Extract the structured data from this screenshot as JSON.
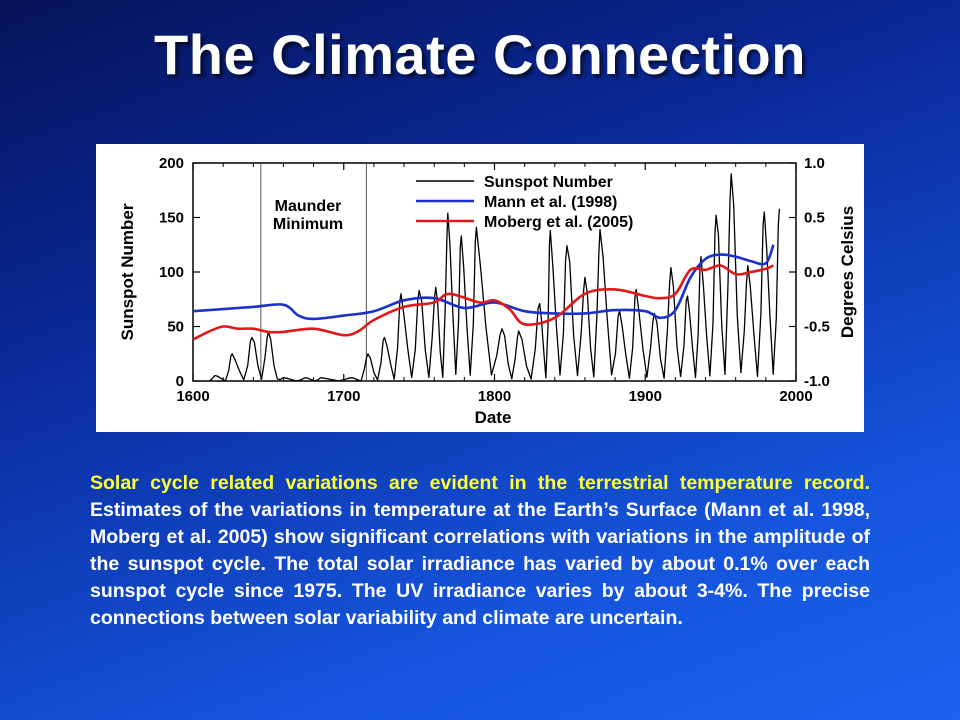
{
  "title": "The Climate Connection",
  "colors": {
    "highlight": "#ffff33",
    "text": "#ffffff",
    "sunspot": "#000000",
    "mann": "#1a2fd0",
    "moberg": "#e01818"
  },
  "body": {
    "highlight_text": "Solar cycle related variations are evident in the terrestrial temperature record.",
    "rest_text": " Estimates of the variations in temperature at the Earth’s Surface (Mann et al. 1998, Moberg et al. 2005) show significant correlations with variations in the amplitude of the sunspot cycle. The total solar irradiance has varied by about 0.1% over each sunspot cycle since 1975. The UV irradiance varies by about 3-4%. The precise connections between solar variability and climate are uncertain."
  },
  "chart_data": {
    "type": "line",
    "xlabel": "Date",
    "ylabel": "Sunspot Number",
    "y2label": "Degrees Celsius",
    "xlim": [
      1600,
      2000
    ],
    "ylim": [
      0,
      200
    ],
    "y2lim": [
      -1.0,
      1.0
    ],
    "x_ticks": [
      "1600",
      "1700",
      "1800",
      "1900",
      "2000"
    ],
    "y_ticks": [
      "0",
      "50",
      "100",
      "150",
      "200"
    ],
    "y2_ticks": [
      "-1.0",
      "-0.5",
      "0.0",
      "0.5",
      "1.0"
    ],
    "annotation": {
      "line1": "Maunder",
      "line2": "Minimum",
      "x_start": 1645,
      "x_end": 1715
    },
    "legend": [
      "Sunspot Number",
      "Mann et al. (1998)",
      "Moberg et al. (2005)"
    ],
    "legend_position": "top-right",
    "sunspot_peaks": [
      [
        1615,
        5
      ],
      [
        1626,
        25
      ],
      [
        1639,
        40
      ],
      [
        1650,
        45
      ],
      [
        1660,
        3
      ],
      [
        1675,
        3
      ],
      [
        1685,
        3
      ],
      [
        1705,
        3
      ],
      [
        1716,
        25
      ],
      [
        1727,
        40
      ],
      [
        1738,
        80
      ],
      [
        1750,
        83
      ],
      [
        1761,
        86
      ],
      [
        1769,
        154
      ],
      [
        1778,
        133
      ],
      [
        1788,
        141
      ],
      [
        1805,
        48
      ],
      [
        1816,
        46
      ],
      [
        1830,
        71
      ],
      [
        1837,
        138
      ],
      [
        1848,
        124
      ],
      [
        1860,
        95
      ],
      [
        1870,
        139
      ],
      [
        1883,
        64
      ],
      [
        1894,
        84
      ],
      [
        1906,
        62
      ],
      [
        1917,
        104
      ],
      [
        1928,
        78
      ],
      [
        1937,
        114
      ],
      [
        1947,
        152
      ],
      [
        1957,
        190
      ],
      [
        1968,
        106
      ],
      [
        1979,
        155
      ],
      [
        1989,
        158
      ]
    ],
    "series": [
      {
        "name": "Mann et al. (1998)",
        "unit": "Degrees Celsius",
        "x": [
          1600,
          1620,
          1640,
          1660,
          1670,
          1680,
          1700,
          1720,
          1740,
          1760,
          1780,
          1800,
          1820,
          1840,
          1860,
          1880,
          1900,
          1910,
          1920,
          1930,
          1940,
          1950,
          1960,
          1970,
          1980,
          1985
        ],
        "y": [
          -0.36,
          -0.34,
          -0.32,
          -0.3,
          -0.4,
          -0.43,
          -0.4,
          -0.36,
          -0.26,
          -0.24,
          -0.33,
          -0.28,
          -0.36,
          -0.38,
          -0.38,
          -0.35,
          -0.36,
          -0.42,
          -0.35,
          -0.05,
          0.12,
          0.16,
          0.14,
          0.1,
          0.08,
          0.25
        ]
      },
      {
        "name": "Moberg et al. (2005)",
        "unit": "Degrees Celsius",
        "x": [
          1600,
          1610,
          1620,
          1630,
          1640,
          1650,
          1660,
          1680,
          1700,
          1710,
          1720,
          1740,
          1760,
          1770,
          1790,
          1800,
          1810,
          1820,
          1840,
          1860,
          1880,
          1900,
          1910,
          1920,
          1930,
          1940,
          1950,
          1960,
          1970,
          1980,
          1985
        ],
        "y": [
          -0.62,
          -0.55,
          -0.5,
          -0.52,
          -0.52,
          -0.55,
          -0.55,
          -0.52,
          -0.58,
          -0.54,
          -0.44,
          -0.32,
          -0.28,
          -0.2,
          -0.28,
          -0.26,
          -0.34,
          -0.48,
          -0.42,
          -0.2,
          -0.16,
          -0.22,
          -0.24,
          -0.2,
          0.02,
          0.02,
          0.06,
          -0.02,
          0.0,
          0.03,
          0.06
        ]
      }
    ]
  }
}
